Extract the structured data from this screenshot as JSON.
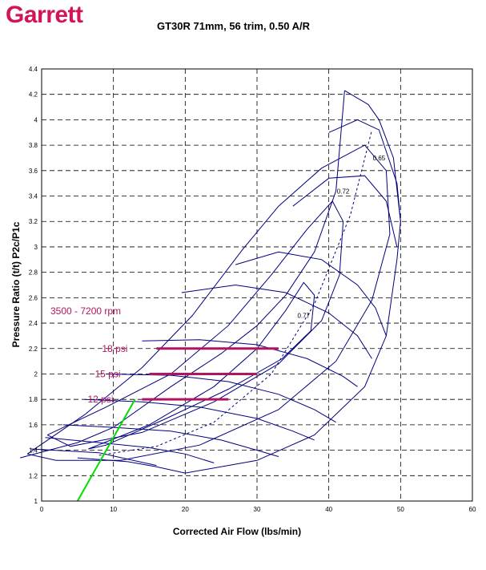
{
  "brand": {
    "logo_text": "Garrett",
    "logo_color": "#d4145a"
  },
  "chart_data": {
    "type": "line",
    "title": "GT30R 71mm, 56 trim, 0.50 A/R",
    "xlabel": "Corrected Air Flow (lbs/min)",
    "ylabel": "Pressure Ratio (t/t) P2c/P1c",
    "xlim": [
      0,
      60
    ],
    "ylim": [
      1,
      4.4
    ],
    "x_ticks": [
      "0",
      "10",
      "20",
      "30",
      "40",
      "50",
      "60"
    ],
    "y_ticks": [
      "1",
      "1.2",
      "1.4",
      "1.6",
      "1.8",
      "2",
      "2.2",
      "2.4",
      "2.6",
      "2.8",
      "3",
      "3.2",
      "3.4",
      "3.6",
      "3.8",
      "4",
      "4.2",
      "4.4"
    ],
    "grid": true,
    "colors": {
      "map": "#000080",
      "boost": "#b01660",
      "surge": "#00dd00",
      "grid": "#000000"
    },
    "surge_line": [
      [
        -3,
        1.34
      ],
      [
        5,
        1.46
      ],
      [
        10,
        1.58
      ],
      [
        18,
        1.9
      ],
      [
        25,
        2.16
      ],
      [
        30,
        2.38
      ],
      [
        34,
        2.62
      ],
      [
        38,
        2.96
      ],
      [
        41,
        3.44
      ],
      [
        41.7,
        3.9
      ],
      [
        42.2,
        4.23
      ]
    ],
    "choke_line": [
      [
        5,
        1.34
      ],
      [
        12,
        1.31
      ],
      [
        16,
        1.27
      ],
      [
        20,
        1.22
      ],
      [
        30,
        1.32
      ],
      [
        38,
        1.52
      ],
      [
        45,
        1.9
      ],
      [
        48,
        2.3
      ],
      [
        49.5,
        2.9
      ],
      [
        50,
        3.2
      ],
      [
        49,
        3.7
      ],
      [
        47,
        4.0
      ],
      [
        45.5,
        4.12
      ],
      [
        42.2,
        4.23
      ]
    ],
    "speed_lines": [
      [
        [
          -1.5,
          1.41
        ],
        [
          8,
          1.38
        ],
        [
          12,
          1.33
        ],
        [
          16,
          1.28
        ]
      ],
      [
        [
          0.5,
          1.5
        ],
        [
          8,
          1.46
        ],
        [
          15,
          1.42
        ],
        [
          20,
          1.37
        ],
        [
          24,
          1.3
        ]
      ],
      [
        [
          3,
          1.6
        ],
        [
          10,
          1.58
        ],
        [
          18,
          1.55
        ],
        [
          25,
          1.48
        ],
        [
          30,
          1.4
        ],
        [
          33,
          1.35
        ]
      ],
      [
        [
          6,
          1.8
        ],
        [
          14,
          1.78
        ],
        [
          22,
          1.74
        ],
        [
          30,
          1.65
        ],
        [
          35,
          1.55
        ],
        [
          38,
          1.48
        ]
      ],
      [
        [
          9,
          2.0
        ],
        [
          18,
          1.99
        ],
        [
          26,
          1.94
        ],
        [
          33,
          1.84
        ],
        [
          38,
          1.72
        ],
        [
          41,
          1.62
        ]
      ],
      [
        [
          14,
          2.26
        ],
        [
          22,
          2.27
        ],
        [
          30,
          2.23
        ],
        [
          37,
          2.12
        ],
        [
          42,
          1.98
        ],
        [
          44,
          1.9
        ]
      ],
      [
        [
          19.5,
          2.64
        ],
        [
          27,
          2.7
        ],
        [
          34,
          2.64
        ],
        [
          40,
          2.48
        ],
        [
          44,
          2.3
        ],
        [
          46,
          2.12
        ]
      ],
      [
        [
          27,
          2.86
        ],
        [
          33,
          2.96
        ],
        [
          39,
          2.9
        ],
        [
          44,
          2.7
        ],
        [
          46.5,
          2.52
        ],
        [
          48,
          2.3
        ]
      ],
      [
        [
          35,
          3.32
        ],
        [
          40,
          3.54
        ],
        [
          45,
          3.56
        ],
        [
          48,
          3.36
        ],
        [
          49.5,
          3.0
        ]
      ],
      [
        [
          40,
          3.9
        ],
        [
          44,
          4.0
        ],
        [
          47,
          3.92
        ],
        [
          49.5,
          3.5
        ],
        [
          50,
          3.2
        ]
      ]
    ],
    "efficiency_islands": [
      {
        "label": "0.77",
        "points": [
          [
            6.5,
            1.41
          ],
          [
            15,
            1.6
          ],
          [
            24,
            1.9
          ],
          [
            30,
            2.2
          ],
          [
            34,
            2.5
          ],
          [
            36.5,
            2.72
          ],
          [
            38,
            2.62
          ],
          [
            37.5,
            2.34
          ],
          [
            33.5,
            2.12
          ],
          [
            26,
            1.88
          ],
          [
            17,
            1.64
          ],
          [
            9,
            1.44
          ],
          [
            6.5,
            1.41
          ]
        ]
      },
      {
        "label": "0.72",
        "points": [
          [
            0.8,
            1.52
          ],
          [
            9,
            1.74
          ],
          [
            18,
            2.0
          ],
          [
            26,
            2.38
          ],
          [
            32,
            2.78
          ],
          [
            37,
            3.14
          ],
          [
            40.5,
            3.36
          ],
          [
            42,
            3.2
          ],
          [
            41.5,
            2.78
          ],
          [
            39,
            2.42
          ],
          [
            33,
            2.08
          ],
          [
            24,
            1.78
          ],
          [
            14,
            1.54
          ],
          [
            4,
            1.43
          ],
          [
            0.8,
            1.52
          ]
        ]
      },
      {
        "label": "0.65",
        "points": [
          [
            -2,
            1.37
          ],
          [
            6,
            1.68
          ],
          [
            14,
            2.05
          ],
          [
            21,
            2.46
          ],
          [
            28,
            2.98
          ],
          [
            33,
            3.32
          ],
          [
            39,
            3.62
          ],
          [
            45,
            3.8
          ],
          [
            48,
            3.6
          ],
          [
            48.5,
            3.1
          ],
          [
            46,
            2.58
          ],
          [
            41,
            2.1
          ],
          [
            33,
            1.72
          ],
          [
            22,
            1.44
          ],
          [
            11,
            1.32
          ],
          [
            2,
            1.32
          ],
          [
            -2,
            1.37
          ]
        ]
      }
    ],
    "operating_line": [
      [
        8,
        1.36
      ],
      [
        16,
        1.43
      ],
      [
        24,
        1.62
      ],
      [
        32,
        2.0
      ],
      [
        38,
        2.55
      ],
      [
        43,
        3.25
      ],
      [
        46,
        3.92
      ]
    ],
    "boost_lines": [
      {
        "label": "12 psi",
        "x": [
          14,
          26
        ],
        "y": 1.8
      },
      {
        "label": "15 psi",
        "x": [
          15,
          30
        ],
        "y": 2.0
      },
      {
        "label": "18 psi",
        "x": [
          16,
          33
        ],
        "y": 2.2
      }
    ],
    "rpm_label": "3500 - 7200 rpm",
    "green_line": [
      [
        5,
        1.0
      ],
      [
        13,
        1.8
      ]
    ]
  }
}
